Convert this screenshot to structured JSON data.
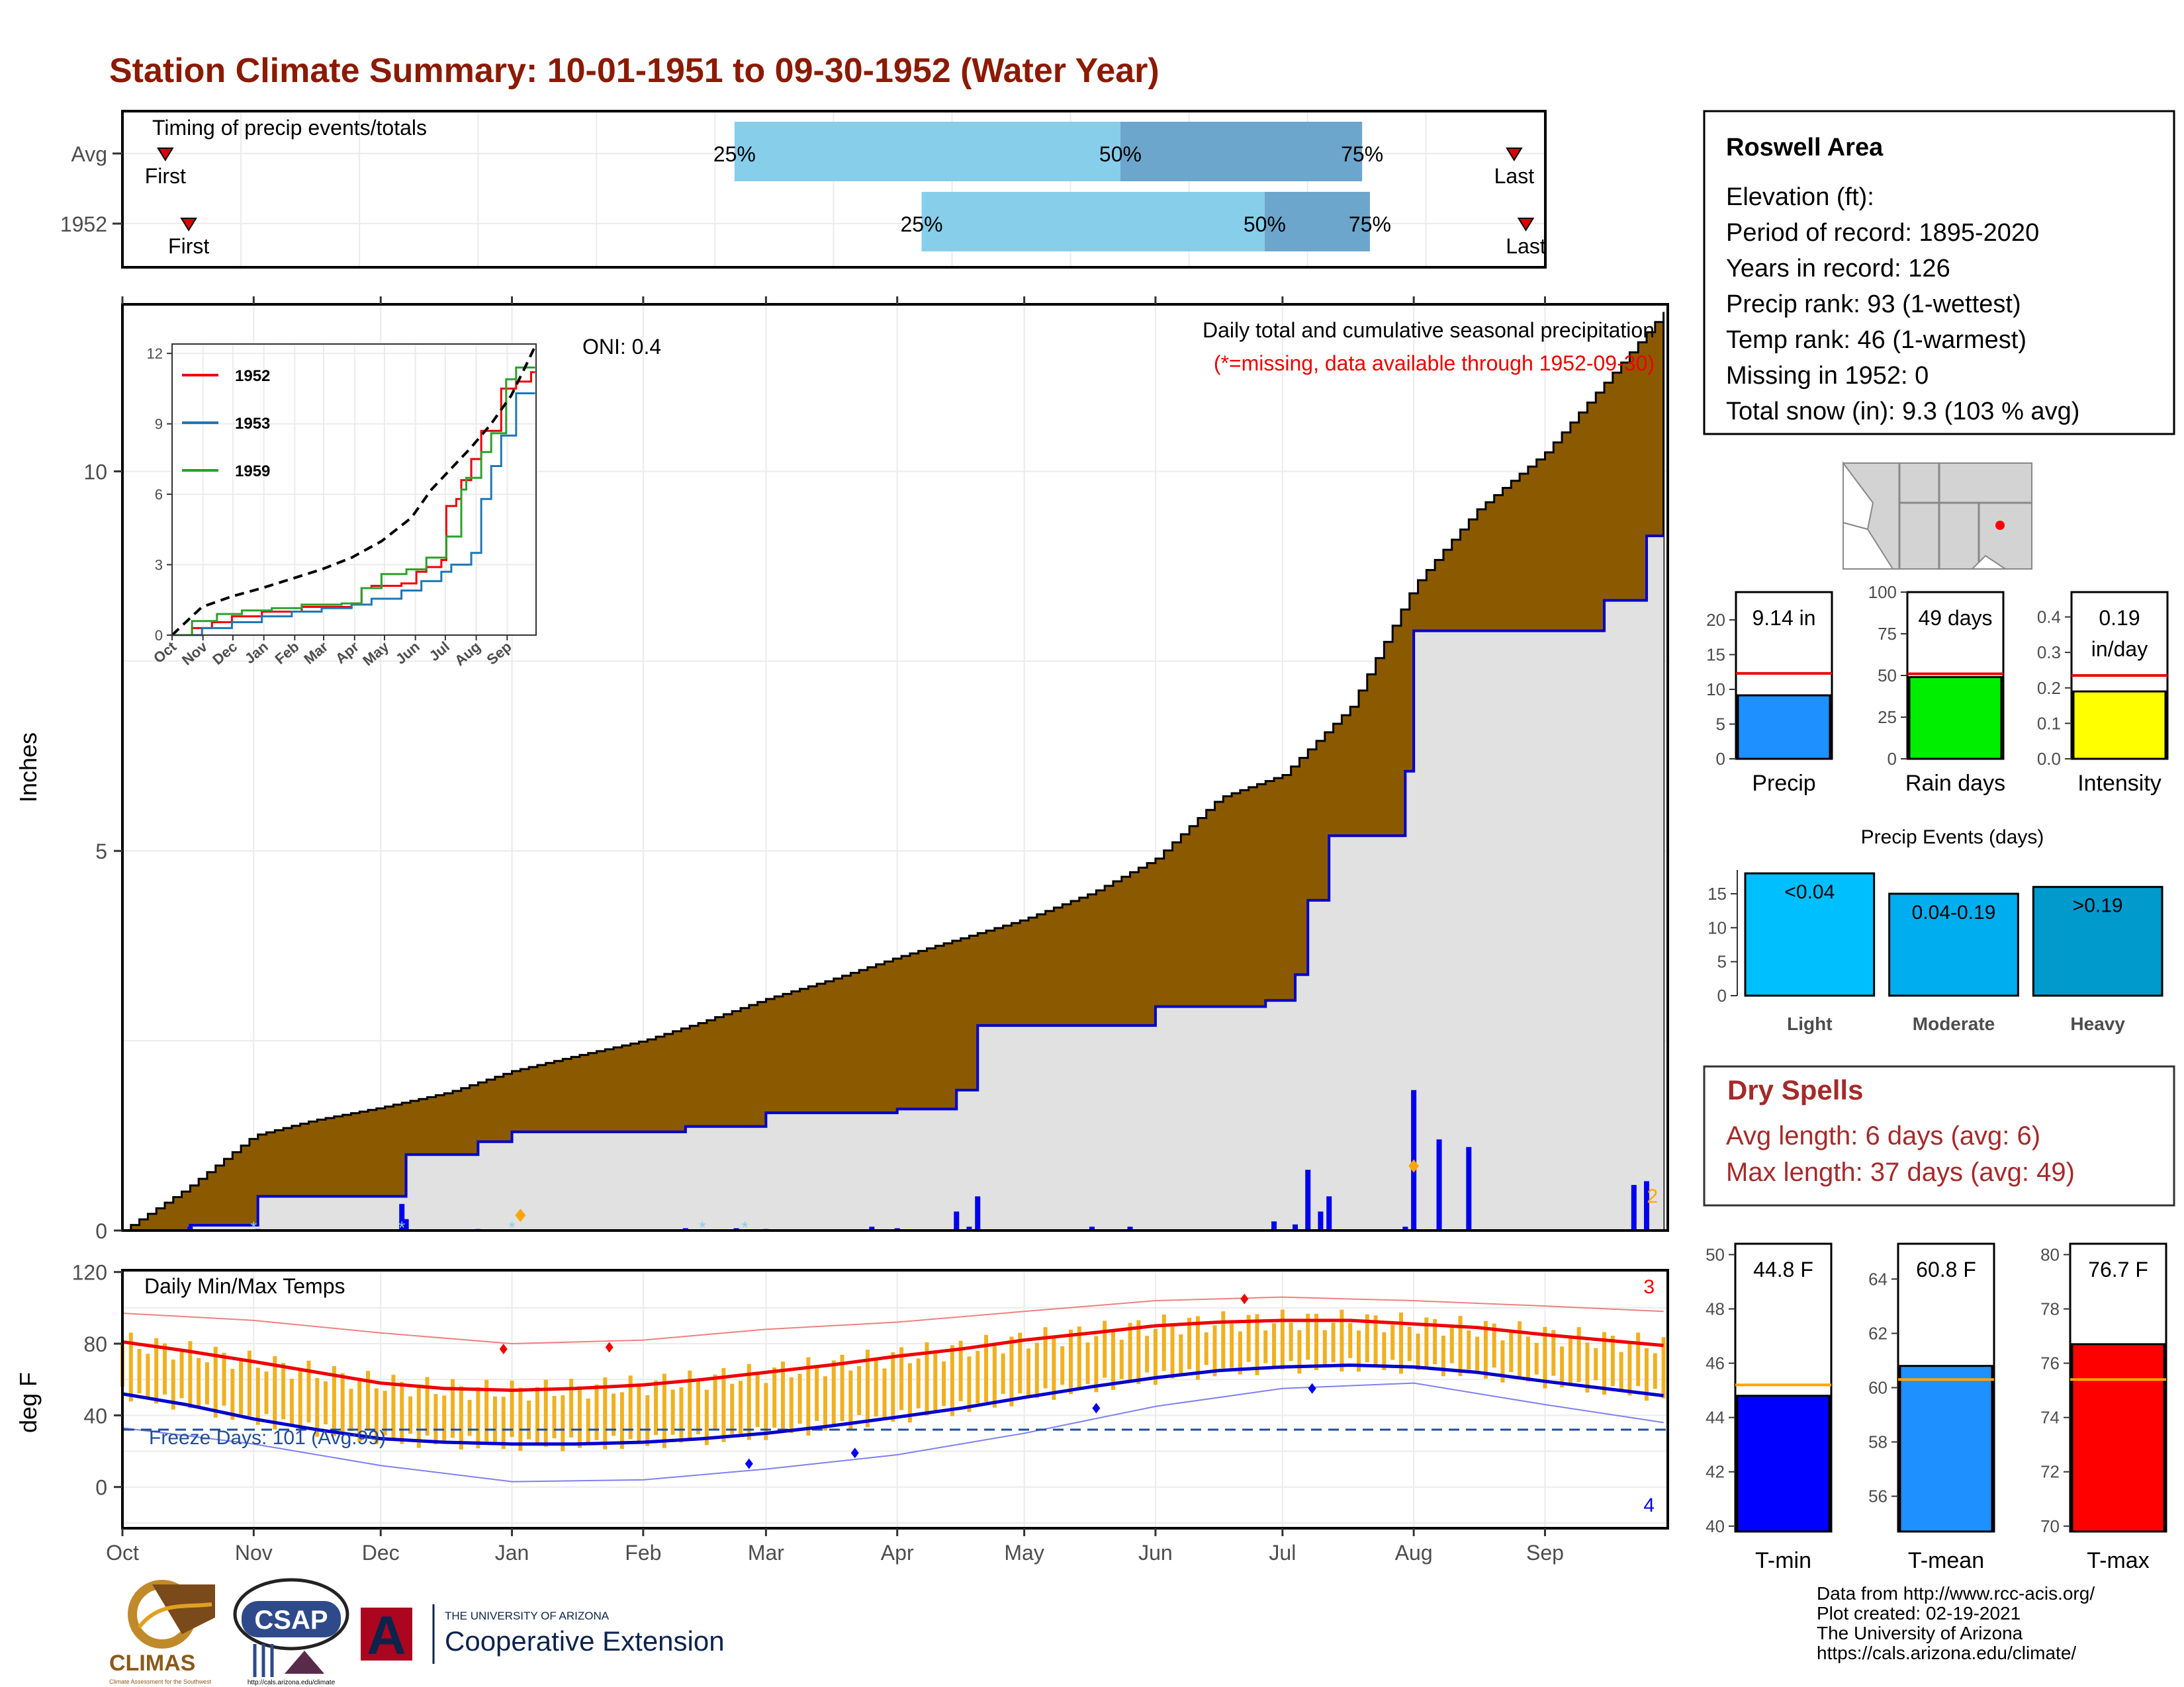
{
  "page": {
    "title": "Station Climate Summary: 10-01-1951 to 09-30-1952 (Water Year)",
    "credits": [
      "Data from http://www.rcc-acis.org/",
      "Plot created: 02-19-2021",
      "The University of Arizona",
      "https://cals.arizona.edu/climate/"
    ],
    "logos": {
      "climas": "CLIMAS",
      "climas_sub": "Climate Assessment for the Southwest",
      "csap": "CSAP",
      "csap_url": "http://cals.arizona.edu/climate",
      "ua_small": "THE UNIVERSITY OF ARIZONA",
      "ua_large": "Cooperative Extension",
      "ua_mark": "A"
    }
  },
  "colors": {
    "title": "#8B1A00",
    "cumulative_avg_fill": "#8B5A00",
    "cumulative_obs_fill": "#E1E1E1",
    "cumulative_obs_line": "#0000CC",
    "daily_bars": "#0000EE",
    "temp_range": "#F0B020",
    "tmax_avg_line": "#EE0000",
    "tmin_avg_line": "#0000CC",
    "timing_light": "#87CEEB",
    "timing_dark": "#6CA6CD",
    "precip_bar": "#1E90FF",
    "raindays_bar": "#00EE00",
    "intensity_bar": "#FFFF00",
    "events_light": "#00BFFF",
    "events_moderate": "#00AEEF",
    "events_heavy": "#009ACD",
    "tmin_bar": "#0000FF",
    "tmean_bar": "#1E90FF",
    "tmax_bar": "#FF0000",
    "dry_spells_text": "#A52A2A",
    "missing_note": "#EE0000"
  },
  "chart_data": [
    {
      "type": "bar",
      "name": "timing",
      "title": "Timing of precip events/totals",
      "categories": [
        "Avg",
        "1952"
      ],
      "rows": [
        {
          "label": "Avg",
          "first_day": 11,
          "q25": 157,
          "q50": 256,
          "q75": 318,
          "last_day": 357,
          "labels": [
            "First",
            "25%",
            "50%",
            "75%",
            "Last"
          ]
        },
        {
          "label": "1952",
          "first_day": 17,
          "q25": 205,
          "q50": 293,
          "q75": 320,
          "last_day": 360,
          "labels": [
            "First",
            "25%",
            "50%",
            "75%",
            "Last"
          ]
        }
      ]
    },
    {
      "type": "area",
      "name": "cumulative-precip",
      "title": "Daily total and cumulative seasonal precipitation",
      "subtitle": "(*=missing, data available through 1952-09-30)",
      "annotation": "ONI: 0.4",
      "ylabel": "Inches",
      "ylim": [
        0,
        12.2
      ],
      "yticks": [
        0,
        5,
        10
      ],
      "x_months": [
        "Oct",
        "Nov",
        "Dec",
        "Jan",
        "Feb",
        "Mar",
        "Apr",
        "May",
        "Jun",
        "Jul",
        "Aug",
        "Sep"
      ],
      "x_month_start_days": [
        0,
        31,
        61,
        92,
        123,
        152,
        183,
        213,
        244,
        274,
        305,
        336
      ],
      "xlim": [
        0,
        365
      ],
      "avg_cumulative": {
        "x": [
          0,
          15,
          31,
          45,
          61,
          77,
          92,
          107,
          123,
          137,
          152,
          167,
          183,
          198,
          213,
          229,
          244,
          259,
          274,
          290,
          305,
          320,
          336,
          352,
          364
        ],
        "y": [
          0,
          0.55,
          1.25,
          1.45,
          1.62,
          1.82,
          2.1,
          2.3,
          2.5,
          2.75,
          3.05,
          3.3,
          3.6,
          3.85,
          4.1,
          4.45,
          4.9,
          5.7,
          6.0,
          6.9,
          8.5,
          9.5,
          10.25,
          11.3,
          12.1
        ]
      },
      "obs_cumulative": {
        "x": [
          0,
          16,
          32,
          66,
          67,
          84,
          92,
          133,
          152,
          183,
          197,
          202,
          244,
          270,
          277,
          280,
          285,
          295,
          303,
          305,
          319,
          350,
          360,
          364
        ],
        "y": [
          0,
          0.07,
          0.45,
          0.45,
          1.0,
          1.17,
          1.3,
          1.37,
          1.55,
          1.6,
          1.85,
          2.7,
          2.95,
          3.03,
          3.37,
          4.35,
          5.2,
          5.2,
          6.05,
          7.9,
          7.9,
          8.3,
          9.15,
          9.15
        ]
      },
      "daily_precip": {
        "x": [
          16,
          32,
          66,
          67,
          84,
          133,
          145,
          152,
          177,
          183,
          197,
          200,
          202,
          229,
          238,
          272,
          277,
          280,
          283,
          285,
          303,
          305,
          311,
          318,
          357,
          360
        ],
        "y": [
          0.05,
          0.02,
          0.35,
          0.15,
          0.02,
          0.03,
          0.03,
          0.02,
          0.05,
          0.03,
          0.25,
          0.05,
          0.45,
          0.05,
          0.05,
          0.12,
          0.08,
          0.8,
          0.25,
          0.45,
          0.05,
          1.85,
          1.2,
          1.1,
          0.6,
          0.65
        ]
      },
      "snow_markers": {
        "x": [
          31,
          66,
          92,
          137,
          147
        ],
        "y": [
          0.05,
          0.05,
          0.05,
          0.05,
          0.05
        ]
      },
      "record_markers": {
        "x": [
          94,
          305
        ],
        "y": [
          0.2,
          0.85
        ]
      },
      "record_count": "2"
    },
    {
      "type": "line",
      "name": "inset-cumulative",
      "ylim": [
        0,
        12.4
      ],
      "yticks": [
        0,
        3,
        6,
        9,
        12
      ],
      "x_months": [
        "Oct",
        "Nov",
        "Dec",
        "Jan",
        "Feb",
        "Mar",
        "Apr",
        "May",
        "Jun",
        "Jul",
        "Aug",
        "Sep"
      ],
      "series": [
        {
          "name": "1952",
          "color": "#EE0000",
          "x": [
            0,
            20,
            40,
            60,
            90,
            130,
            180,
            190,
            200,
            230,
            245,
            255,
            270,
            275,
            285,
            290,
            300,
            310,
            330,
            345,
            360,
            364
          ],
          "y": [
            0,
            0.3,
            0.55,
            0.8,
            1.0,
            1.2,
            1.35,
            2.0,
            2.1,
            2.2,
            2.7,
            2.9,
            3.2,
            5.5,
            5.8,
            6.6,
            7.5,
            8.7,
            10.5,
            10.8,
            11.2,
            11.2
          ]
        },
        {
          "name": "1953",
          "color": "#1F77B4",
          "x": [
            0,
            30,
            60,
            90,
            120,
            150,
            180,
            200,
            230,
            250,
            270,
            280,
            300,
            310,
            320,
            330,
            345,
            364
          ],
          "y": [
            0,
            0.3,
            0.55,
            0.8,
            1.0,
            1.15,
            1.3,
            1.55,
            1.9,
            2.3,
            2.7,
            3.0,
            3.5,
            5.8,
            7.2,
            8.5,
            10.3,
            10.3
          ]
        },
        {
          "name": "1959",
          "color": "#2CA02C",
          "x": [
            0,
            20,
            45,
            70,
            100,
            130,
            170,
            190,
            210,
            235,
            255,
            275,
            290,
            295,
            310,
            320,
            335,
            345,
            364
          ],
          "y": [
            0,
            0.6,
            0.9,
            1.05,
            1.15,
            1.3,
            1.35,
            2.0,
            2.6,
            2.8,
            3.3,
            4.2,
            6.2,
            6.7,
            7.8,
            8.6,
            10.9,
            11.4,
            11.4
          ]
        },
        {
          "name": "",
          "color": "#000000",
          "dashed": true,
          "x": [
            0,
            30,
            60,
            90,
            120,
            150,
            180,
            210,
            240,
            260,
            280,
            300,
            320,
            340,
            355,
            364
          ],
          "y": [
            0,
            1.2,
            1.65,
            2.0,
            2.4,
            2.8,
            3.3,
            4.0,
            5.0,
            6.2,
            7.1,
            8.0,
            9.0,
            10.2,
            11.5,
            12.3
          ]
        }
      ]
    },
    {
      "type": "line",
      "name": "daily-temps",
      "title": "Daily Min/Max Temps",
      "ylabel": "deg F",
      "ylim": [
        -20,
        120
      ],
      "yticks": [
        0,
        40,
        80,
        120
      ],
      "x_months": [
        "Oct",
        "Nov",
        "Dec",
        "Jan",
        "Feb",
        "Mar",
        "Apr",
        "May",
        "Jun",
        "Jul",
        "Aug",
        "Sep"
      ],
      "freeze_line": 32,
      "freeze_label": "Freeze Days: 101 (Avg:99)",
      "record_high_count": "3",
      "record_low_count": "4",
      "tmax_avg": {
        "x": [
          0,
          15,
          31,
          46,
          61,
          76,
          92,
          107,
          123,
          137,
          152,
          167,
          183,
          198,
          213,
          229,
          244,
          259,
          274,
          290,
          305,
          320,
          336,
          350,
          364
        ],
        "y": [
          81,
          76,
          70,
          64,
          58,
          55,
          54,
          55,
          57,
          60,
          64,
          68,
          73,
          77,
          82,
          86,
          90,
          92,
          93,
          93,
          91,
          89,
          85,
          82,
          79
        ]
      },
      "tmin_avg": {
        "x": [
          0,
          15,
          31,
          46,
          61,
          76,
          92,
          107,
          123,
          137,
          152,
          167,
          183,
          198,
          213,
          229,
          244,
          259,
          274,
          290,
          305,
          320,
          336,
          350,
          364
        ],
        "y": [
          52,
          46,
          38,
          32,
          27,
          25,
          24,
          24,
          25,
          27,
          30,
          34,
          39,
          44,
          50,
          56,
          61,
          65,
          67,
          68,
          67,
          64,
          59,
          55,
          51
        ]
      },
      "record_max_normal": {
        "x": [
          0,
          31,
          61,
          92,
          123,
          152,
          183,
          213,
          244,
          274,
          305,
          336,
          364
        ],
        "y": [
          97,
          93,
          86,
          80,
          82,
          88,
          92,
          98,
          104,
          106,
          104,
          101,
          98
        ]
      },
      "record_min_normal": {
        "x": [
          0,
          31,
          61,
          92,
          123,
          152,
          183,
          213,
          244,
          274,
          305,
          336,
          364
        ],
        "y": [
          33,
          24,
          12,
          3,
          4,
          10,
          18,
          30,
          45,
          55,
          58,
          46,
          36
        ]
      },
      "record_high_markers": {
        "x": [
          90,
          115,
          265
        ],
        "y": [
          77,
          78,
          105
        ]
      },
      "record_low_markers": {
        "x": [
          148,
          173,
          230,
          281
        ],
        "y": [
          13,
          19,
          44,
          55
        ]
      }
    },
    {
      "type": "bar",
      "name": "precip-total",
      "categories": [
        "Precip"
      ],
      "values": [
        9.14
      ],
      "avg": 12.3,
      "label": "9.14 in",
      "ylim": [
        0,
        24
      ],
      "yticks": [
        0,
        5,
        10,
        15,
        20
      ]
    },
    {
      "type": "bar",
      "name": "rain-days",
      "categories": [
        "Rain days"
      ],
      "values": [
        49
      ],
      "avg": 51,
      "label": "49 days",
      "ylim": [
        0,
        100
      ],
      "yticks": [
        0,
        25,
        50,
        75,
        100
      ]
    },
    {
      "type": "bar",
      "name": "intensity",
      "categories": [
        "Intensity"
      ],
      "values": [
        0.19
      ],
      "avg": 0.235,
      "label": "0.19",
      "label2": "in/day",
      "ylim": [
        0,
        0.47
      ],
      "yticks": [
        0.0,
        0.1,
        0.2,
        0.3,
        0.4
      ],
      "ytick_labels": [
        "0.0",
        "0.1",
        "0.2",
        "0.3",
        "0.4"
      ]
    },
    {
      "type": "bar",
      "name": "precip-events",
      "title": "Precip Events (days)",
      "categories": [
        "Light",
        "Moderate",
        "Heavy"
      ],
      "values": [
        18,
        15,
        16
      ],
      "bar_labels": [
        "<0.04",
        "0.04-0.19",
        ">0.19"
      ],
      "ylim": [
        0,
        18.5
      ],
      "yticks": [
        0,
        5,
        10,
        15
      ]
    },
    {
      "type": "bar",
      "name": "tmin",
      "categories": [
        "T-min"
      ],
      "values": [
        44.8
      ],
      "avg": 45.2,
      "label": "44.8 F",
      "ylim": [
        39.8,
        50.4
      ],
      "yticks": [
        40,
        42,
        44,
        46,
        48,
        50
      ]
    },
    {
      "type": "bar",
      "name": "tmean",
      "categories": [
        "T-mean"
      ],
      "values": [
        60.8
      ],
      "avg": 60.3,
      "label": "60.8 F",
      "ylim": [
        54.7,
        65.3
      ],
      "yticks": [
        56,
        58,
        60,
        62,
        64
      ]
    },
    {
      "type": "bar",
      "name": "tmax",
      "categories": [
        "T-max"
      ],
      "values": [
        76.7
      ],
      "avg": 75.4,
      "label": "76.7 F",
      "ylim": [
        69.8,
        80.4
      ],
      "yticks": [
        70,
        72,
        74,
        76,
        78,
        80
      ]
    }
  ],
  "station": {
    "name": "Roswell Area",
    "lines": [
      "Elevation (ft):",
      "Period of record: 1895-2020",
      "Years in record: 126",
      "Precip rank: 93 (1-wettest)",
      "Temp rank: 46 (1-warmest)",
      "Missing in 1952: 0",
      "Total snow (in): 9.3 (103 % avg)"
    ]
  },
  "dry_spells": {
    "title": "Dry Spells",
    "lines": [
      "Avg length: 6 days (avg: 6)",
      "Max length: 37 days (avg: 49)"
    ]
  }
}
